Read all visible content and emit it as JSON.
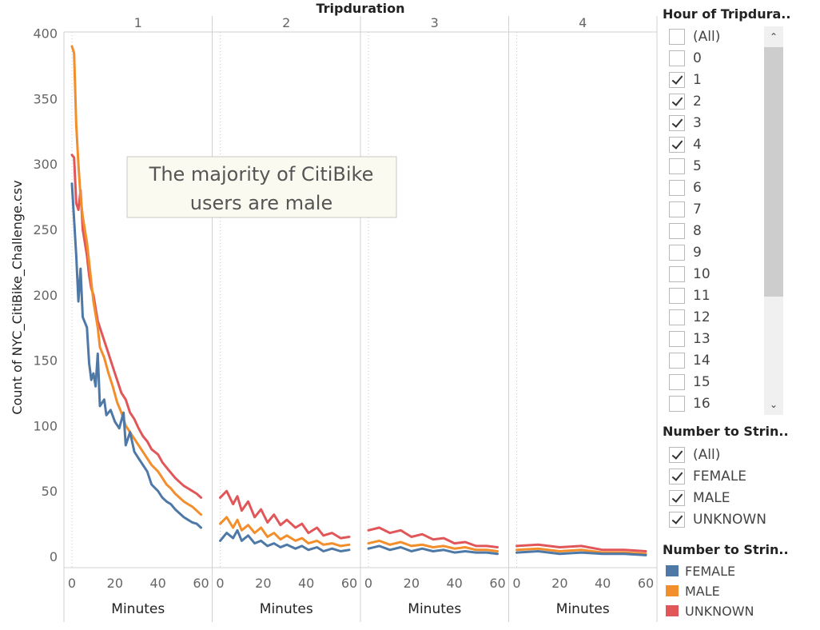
{
  "chart_data": {
    "type": "line",
    "title": "Tripduration",
    "ylabel": "Count of NYC_CitiBike_Challenge.csv",
    "xlabel": "Minutes",
    "ylim": [
      0,
      420
    ],
    "yticks": [
      0,
      50,
      100,
      150,
      200,
      250,
      300,
      350,
      400
    ],
    "xticks": [
      0,
      20,
      40,
      60
    ],
    "xlim": [
      0,
      60
    ],
    "panels": [
      "1",
      "2",
      "3",
      "4"
    ],
    "annotation": "The majority of CitiBike users are male",
    "series": [
      {
        "name": "FEMALE",
        "color": "#4e79a7",
        "points": [
          [
            [
              0,
              285
            ],
            [
              2,
              230
            ],
            [
              3,
              195
            ],
            [
              4,
              220
            ],
            [
              5,
              183
            ],
            [
              7,
              175
            ],
            [
              8,
              148
            ],
            [
              9,
              135
            ],
            [
              10,
              140
            ],
            [
              11,
              130
            ],
            [
              12,
              155
            ],
            [
              13,
              115
            ],
            [
              15,
              120
            ],
            [
              16,
              108
            ],
            [
              18,
              112
            ],
            [
              20,
              103
            ],
            [
              22,
              98
            ],
            [
              24,
              110
            ],
            [
              25,
              85
            ],
            [
              27,
              95
            ],
            [
              29,
              80
            ],
            [
              31,
              75
            ],
            [
              33,
              70
            ],
            [
              35,
              65
            ],
            [
              37,
              55
            ],
            [
              40,
              50
            ],
            [
              42,
              45
            ],
            [
              44,
              42
            ],
            [
              46,
              40
            ],
            [
              48,
              36
            ],
            [
              50,
              33
            ],
            [
              52,
              30
            ],
            [
              54,
              28
            ],
            [
              56,
              26
            ],
            [
              58,
              25
            ],
            [
              60,
              22
            ]
          ],
          [
            [
              0,
              12
            ],
            [
              3,
              18
            ],
            [
              6,
              14
            ],
            [
              8,
              20
            ],
            [
              10,
              12
            ],
            [
              13,
              16
            ],
            [
              16,
              10
            ],
            [
              19,
              12
            ],
            [
              22,
              8
            ],
            [
              25,
              10
            ],
            [
              28,
              7
            ],
            [
              31,
              9
            ],
            [
              35,
              6
            ],
            [
              38,
              8
            ],
            [
              41,
              5
            ],
            [
              45,
              7
            ],
            [
              48,
              4
            ],
            [
              52,
              6
            ],
            [
              56,
              4
            ],
            [
              60,
              5
            ]
          ],
          [
            [
              0,
              6
            ],
            [
              5,
              8
            ],
            [
              10,
              5
            ],
            [
              15,
              7
            ],
            [
              20,
              4
            ],
            [
              25,
              6
            ],
            [
              30,
              4
            ],
            [
              35,
              5
            ],
            [
              40,
              3
            ],
            [
              45,
              4
            ],
            [
              50,
              3
            ],
            [
              55,
              3
            ],
            [
              60,
              2
            ]
          ],
          [
            [
              0,
              3
            ],
            [
              10,
              4
            ],
            [
              20,
              2
            ],
            [
              30,
              3
            ],
            [
              40,
              2
            ],
            [
              50,
              2
            ],
            [
              60,
              1
            ]
          ]
        ]
      },
      {
        "name": "MALE",
        "color": "#f28e2b",
        "points": [
          [
            [
              0,
              390
            ],
            [
              1,
              385
            ],
            [
              2,
              330
            ],
            [
              3,
              300
            ],
            [
              4,
              275
            ],
            [
              5,
              260
            ],
            [
              7,
              240
            ],
            [
              8,
              225
            ],
            [
              9,
              210
            ],
            [
              10,
              195
            ],
            [
              11,
              185
            ],
            [
              12,
              175
            ],
            [
              13,
              160
            ],
            [
              15,
              152
            ],
            [
              17,
              140
            ],
            [
              19,
              130
            ],
            [
              21,
              118
            ],
            [
              23,
              110
            ],
            [
              25,
              100
            ],
            [
              27,
              95
            ],
            [
              29,
              90
            ],
            [
              31,
              85
            ],
            [
              33,
              80
            ],
            [
              35,
              75
            ],
            [
              37,
              70
            ],
            [
              40,
              65
            ],
            [
              42,
              60
            ],
            [
              44,
              55
            ],
            [
              46,
              52
            ],
            [
              48,
              48
            ],
            [
              50,
              45
            ],
            [
              52,
              42
            ],
            [
              54,
              40
            ],
            [
              56,
              38
            ],
            [
              58,
              35
            ],
            [
              60,
              32
            ]
          ],
          [
            [
              0,
              25
            ],
            [
              3,
              30
            ],
            [
              6,
              22
            ],
            [
              8,
              28
            ],
            [
              10,
              20
            ],
            [
              13,
              24
            ],
            [
              16,
              18
            ],
            [
              19,
              22
            ],
            [
              22,
              15
            ],
            [
              25,
              18
            ],
            [
              28,
              13
            ],
            [
              31,
              16
            ],
            [
              35,
              12
            ],
            [
              38,
              14
            ],
            [
              41,
              10
            ],
            [
              45,
              12
            ],
            [
              48,
              9
            ],
            [
              52,
              10
            ],
            [
              56,
              8
            ],
            [
              60,
              9
            ]
          ],
          [
            [
              0,
              10
            ],
            [
              5,
              12
            ],
            [
              10,
              9
            ],
            [
              15,
              11
            ],
            [
              20,
              8
            ],
            [
              25,
              9
            ],
            [
              30,
              7
            ],
            [
              35,
              8
            ],
            [
              40,
              6
            ],
            [
              45,
              7
            ],
            [
              50,
              5
            ],
            [
              55,
              5
            ],
            [
              60,
              4
            ]
          ],
          [
            [
              0,
              5
            ],
            [
              10,
              6
            ],
            [
              20,
              4
            ],
            [
              30,
              5
            ],
            [
              40,
              3
            ],
            [
              50,
              3
            ],
            [
              60,
              2
            ]
          ]
        ]
      },
      {
        "name": "UNKNOWN",
        "color": "#e15759",
        "points": [
          [
            [
              0,
              307
            ],
            [
              1,
              305
            ],
            [
              2,
              270
            ],
            [
              3,
              265
            ],
            [
              4,
              280
            ],
            [
              5,
              250
            ],
            [
              7,
              230
            ],
            [
              8,
              215
            ],
            [
              9,
              205
            ],
            [
              10,
              200
            ],
            [
              11,
              190
            ],
            [
              12,
              180
            ],
            [
              13,
              175
            ],
            [
              15,
              165
            ],
            [
              17,
              155
            ],
            [
              19,
              145
            ],
            [
              21,
              135
            ],
            [
              23,
              125
            ],
            [
              25,
              120
            ],
            [
              27,
              110
            ],
            [
              29,
              105
            ],
            [
              31,
              98
            ],
            [
              33,
              92
            ],
            [
              35,
              88
            ],
            [
              37,
              82
            ],
            [
              40,
              78
            ],
            [
              42,
              72
            ],
            [
              44,
              68
            ],
            [
              46,
              64
            ],
            [
              48,
              60
            ],
            [
              50,
              57
            ],
            [
              52,
              54
            ],
            [
              54,
              52
            ],
            [
              56,
              50
            ],
            [
              58,
              48
            ],
            [
              60,
              45
            ]
          ],
          [
            [
              0,
              45
            ],
            [
              3,
              50
            ],
            [
              6,
              40
            ],
            [
              8,
              46
            ],
            [
              10,
              35
            ],
            [
              13,
              42
            ],
            [
              16,
              30
            ],
            [
              19,
              36
            ],
            [
              22,
              26
            ],
            [
              25,
              32
            ],
            [
              28,
              24
            ],
            [
              31,
              28
            ],
            [
              35,
              22
            ],
            [
              38,
              25
            ],
            [
              41,
              18
            ],
            [
              45,
              22
            ],
            [
              48,
              16
            ],
            [
              52,
              18
            ],
            [
              56,
              14
            ],
            [
              60,
              15
            ]
          ],
          [
            [
              0,
              20
            ],
            [
              5,
              22
            ],
            [
              10,
              18
            ],
            [
              15,
              20
            ],
            [
              20,
              15
            ],
            [
              25,
              17
            ],
            [
              30,
              13
            ],
            [
              35,
              14
            ],
            [
              40,
              10
            ],
            [
              45,
              11
            ],
            [
              50,
              8
            ],
            [
              55,
              8
            ],
            [
              60,
              7
            ]
          ],
          [
            [
              0,
              8
            ],
            [
              10,
              9
            ],
            [
              20,
              7
            ],
            [
              30,
              8
            ],
            [
              40,
              5
            ],
            [
              50,
              5
            ],
            [
              60,
              4
            ]
          ]
        ]
      }
    ]
  },
  "sidebar": {
    "hour_filter": {
      "title": "Hour of Tripdura..",
      "items": [
        {
          "label": "(All)",
          "checked": false
        },
        {
          "label": "0",
          "checked": false
        },
        {
          "label": "1",
          "checked": true
        },
        {
          "label": "2",
          "checked": true
        },
        {
          "label": "3",
          "checked": true
        },
        {
          "label": "4",
          "checked": true
        },
        {
          "label": "5",
          "checked": false
        },
        {
          "label": "6",
          "checked": false
        },
        {
          "label": "7",
          "checked": false
        },
        {
          "label": "8",
          "checked": false
        },
        {
          "label": "9",
          "checked": false
        },
        {
          "label": "10",
          "checked": false
        },
        {
          "label": "11",
          "checked": false
        },
        {
          "label": "12",
          "checked": false
        },
        {
          "label": "13",
          "checked": false
        },
        {
          "label": "14",
          "checked": false
        },
        {
          "label": "15",
          "checked": false
        },
        {
          "label": "16",
          "checked": false
        }
      ],
      "scroll_up": "⌃",
      "scroll_down": "⌄"
    },
    "gender_filter": {
      "title": "Number to Strin..",
      "items": [
        {
          "label": "(All)",
          "checked": true
        },
        {
          "label": "FEMALE",
          "checked": true
        },
        {
          "label": "MALE",
          "checked": true
        },
        {
          "label": "UNKNOWN",
          "checked": true
        }
      ]
    },
    "legend": {
      "title": "Number to Strin..",
      "items": [
        {
          "label": "FEMALE",
          "color": "#4e79a7"
        },
        {
          "label": "MALE",
          "color": "#f28e2b"
        },
        {
          "label": "UNKNOWN",
          "color": "#e15759"
        }
      ]
    }
  }
}
